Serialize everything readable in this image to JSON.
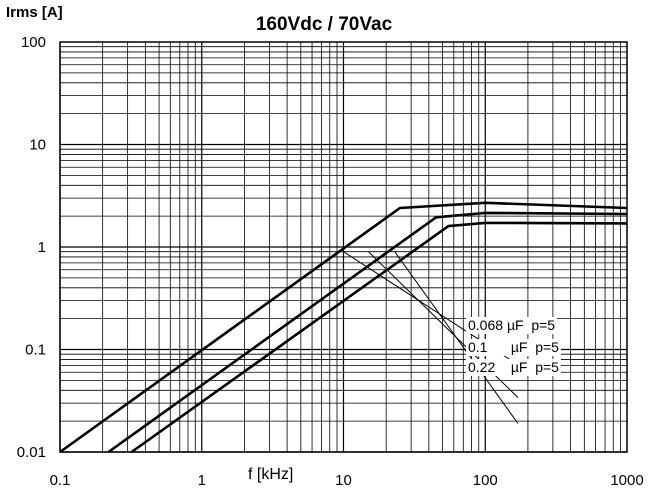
{
  "chart_data": {
    "type": "line",
    "title": "160Vdc / 70Vac",
    "ylabel": "Irms [A]",
    "xlabel": "f [kHz]",
    "xscale": "log",
    "yscale": "log",
    "xlim": [
      0.1,
      1000
    ],
    "ylim": [
      0.01,
      100
    ],
    "xticks": [
      "0.1",
      "1",
      "10",
      "100",
      "1000"
    ],
    "yticks": [
      "100",
      "10",
      "1",
      "0.1",
      "0.01"
    ],
    "grid": true,
    "series": [
      {
        "name": "0.068 µF  p=5",
        "x": [
          0.1,
          25,
          100,
          1000
        ],
        "y": [
          0.01,
          2.4,
          2.7,
          2.4
        ]
      },
      {
        "name": "0.1    µF  p=5",
        "x": [
          0.22,
          45,
          100,
          1000
        ],
        "y": [
          0.01,
          1.95,
          2.15,
          2.1
        ]
      },
      {
        "name": "0.22  µF  p=5",
        "x": [
          0.32,
          55,
          100,
          1000
        ],
        "y": [
          0.01,
          1.6,
          1.72,
          1.7
        ]
      }
    ],
    "legend": [
      {
        "capacitance": "0.068",
        "unit": "µF",
        "p": "p=5"
      },
      {
        "capacitance": "0.1",
        "unit": "µF",
        "p": "p=5"
      },
      {
        "capacitance": "0.22",
        "unit": "µF",
        "p": "p=5"
      }
    ],
    "legend_leaders": [
      {
        "from": [
          10,
          0.9
        ],
        "to": [
          170,
          0.071
        ]
      },
      {
        "from": [
          15,
          0.9
        ],
        "to": [
          170,
          0.034
        ]
      },
      {
        "from": [
          23,
          0.9
        ],
        "to": [
          170,
          0.019
        ]
      }
    ]
  }
}
